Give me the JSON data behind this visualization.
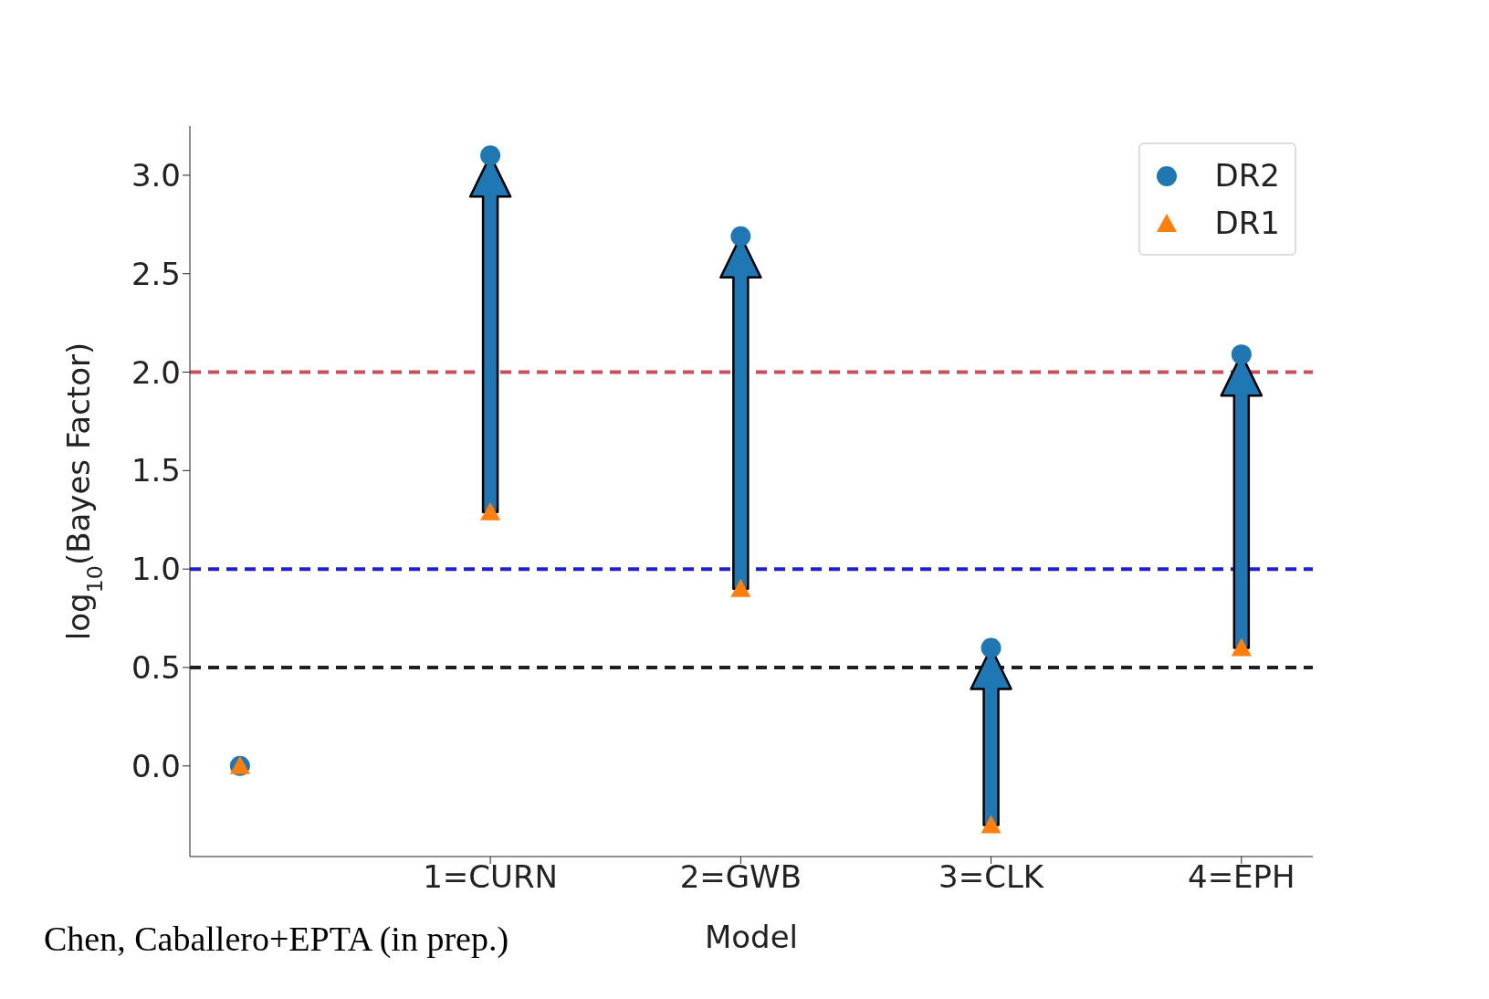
{
  "chart_data": {
    "type": "scatter",
    "xlabel": "Model",
    "ylabel": "log$_{10}$(Bayes Factor)",
    "categories": [
      null,
      "1=CURN",
      "2=GWB",
      "3=CLK",
      "4=EPH"
    ],
    "series": [
      {
        "name": "DR2",
        "color": "#1f77b4",
        "marker": "circle",
        "values": [
          0,
          3.1,
          2.69,
          0.6,
          2.09
        ]
      },
      {
        "name": "DR1",
        "color": "#ff7f0e",
        "marker": "triangle",
        "values": [
          0,
          1.29,
          0.9,
          -0.3,
          0.6
        ]
      }
    ],
    "ylim": [
      -0.46,
      3.25
    ],
    "yticks": [
      {
        "value": 0,
        "label": "0.0"
      },
      {
        "value": 0.5,
        "label": "0.5"
      },
      {
        "value": 1,
        "label": "1.0"
      },
      {
        "value": 1.5,
        "label": "1.5"
      },
      {
        "value": 2,
        "label": "2.0"
      },
      {
        "value": 2.5,
        "label": "2.5"
      },
      {
        "value": 3,
        "label": "3.0"
      }
    ],
    "ref_lines": [
      {
        "axis": "y",
        "value": 2,
        "color": "#c8505a",
        "line_style": "dashed"
      },
      {
        "axis": "y",
        "value": 1,
        "color": "#2020d0",
        "line_style": "dashed"
      },
      {
        "axis": "y",
        "value": 0.5,
        "color": "#202020",
        "line_style": "dashed"
      }
    ],
    "legend": "top right",
    "grid": false,
    "annotations": [
      "Chen, Caballero+EPTA (in prep.)"
    ]
  }
}
